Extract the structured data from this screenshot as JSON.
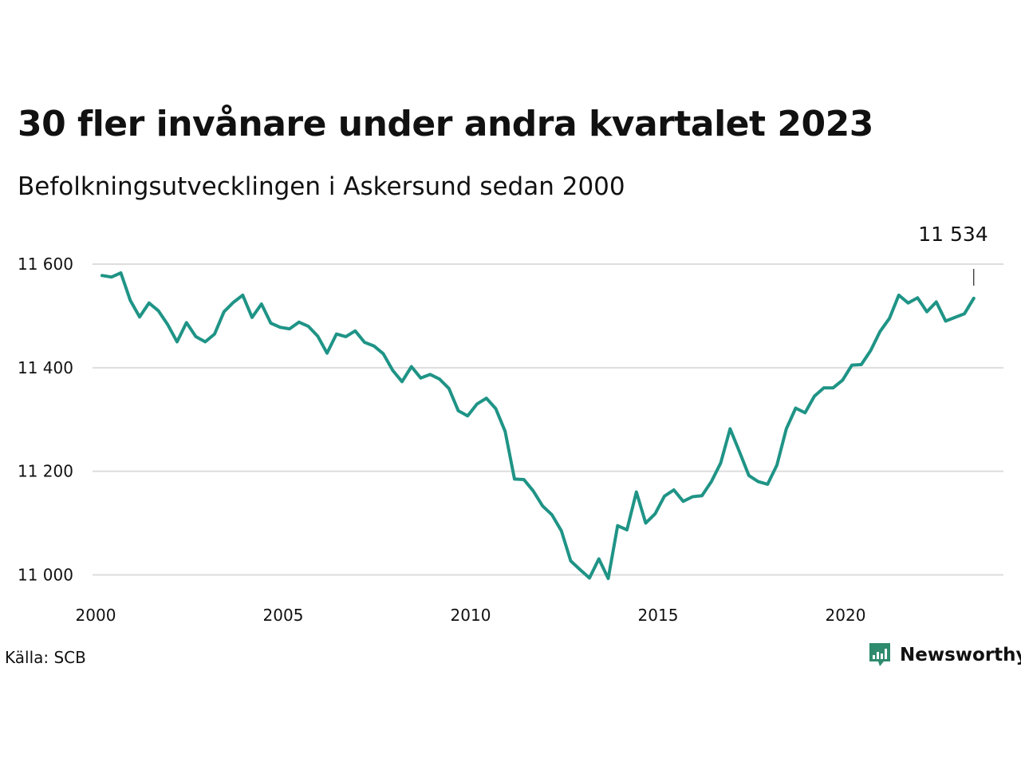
{
  "colors": {
    "line": "#1f9486",
    "grid": "#dddddd",
    "text": "#111111",
    "brand": "#2e8b6e"
  },
  "header": {
    "title": "30 fler invånare under andra kvartalet 2023",
    "subtitle": "Befolkningsutvecklingen i Askersund sedan 2000"
  },
  "footer": {
    "source": "Källa: SCB",
    "brand": "Newsworthy",
    "brand_icon": "newsworthy-logo-icon"
  },
  "chart_data": {
    "type": "line",
    "title": "30 fler invånare under andra kvartalet 2023",
    "subtitle": "Befolkningsutvecklingen i Askersund sedan 2000",
    "xlabel": "",
    "ylabel": "",
    "xlim": [
      2000,
      2024.3
    ],
    "ylim": [
      10990,
      11620
    ],
    "xticks": [
      2000,
      2005,
      2010,
      2015,
      2020
    ],
    "xtick_labels": [
      "2000",
      "2005",
      "2010",
      "2015",
      "2020"
    ],
    "yticks": [
      11000,
      11200,
      11400,
      11600
    ],
    "ytick_labels": [
      "11 000",
      "11 200",
      "11 400",
      "11 600"
    ],
    "grid": true,
    "legend": "none",
    "end_label": "11 534",
    "series": [
      {
        "values": [
          [
            2000.0,
            11578
          ],
          [
            2000.25,
            11575
          ],
          [
            2000.5,
            11583
          ],
          [
            2000.75,
            11530
          ],
          [
            2001.0,
            11498
          ],
          [
            2001.25,
            11525
          ],
          [
            2001.5,
            11510
          ],
          [
            2001.75,
            11483
          ],
          [
            2002.0,
            11450
          ],
          [
            2002.25,
            11487
          ],
          [
            2002.5,
            11460
          ],
          [
            2002.75,
            11450
          ],
          [
            2003.0,
            11465
          ],
          [
            2003.25,
            11508
          ],
          [
            2003.5,
            11526
          ],
          [
            2003.75,
            11540
          ],
          [
            2004.0,
            11497
          ],
          [
            2004.25,
            11523
          ],
          [
            2004.5,
            11486
          ],
          [
            2004.75,
            11478
          ],
          [
            2005.0,
            11475
          ],
          [
            2005.25,
            11488
          ],
          [
            2005.5,
            11480
          ],
          [
            2005.75,
            11461
          ],
          [
            2006.0,
            11428
          ],
          [
            2006.25,
            11465
          ],
          [
            2006.5,
            11460
          ],
          [
            2006.75,
            11471
          ],
          [
            2007.0,
            11449
          ],
          [
            2007.25,
            11442
          ],
          [
            2007.5,
            11427
          ],
          [
            2007.75,
            11395
          ],
          [
            2008.0,
            11373
          ],
          [
            2008.25,
            11402
          ],
          [
            2008.5,
            11380
          ],
          [
            2008.75,
            11387
          ],
          [
            2009.0,
            11378
          ],
          [
            2009.25,
            11360
          ],
          [
            2009.5,
            11317
          ],
          [
            2009.75,
            11307
          ],
          [
            2010.0,
            11330
          ],
          [
            2010.25,
            11341
          ],
          [
            2010.5,
            11321
          ],
          [
            2010.75,
            11277
          ],
          [
            2011.0,
            11185
          ],
          [
            2011.25,
            11184
          ],
          [
            2011.5,
            11162
          ],
          [
            2011.75,
            11133
          ],
          [
            2012.0,
            11116
          ],
          [
            2012.25,
            11085
          ],
          [
            2012.5,
            11027
          ],
          [
            2012.75,
            11010
          ],
          [
            2013.0,
            10994
          ],
          [
            2013.25,
            11031
          ],
          [
            2013.5,
            10993
          ],
          [
            2013.75,
            11095
          ],
          [
            2014.0,
            11087
          ],
          [
            2014.25,
            11160
          ],
          [
            2014.5,
            11100
          ],
          [
            2014.75,
            11118
          ],
          [
            2015.0,
            11152
          ],
          [
            2015.25,
            11164
          ],
          [
            2015.5,
            11142
          ],
          [
            2015.75,
            11151
          ],
          [
            2016.0,
            11153
          ],
          [
            2016.25,
            11180
          ],
          [
            2016.5,
            11216
          ],
          [
            2016.75,
            11282
          ],
          [
            2017.0,
            11238
          ],
          [
            2017.25,
            11192
          ],
          [
            2017.5,
            11180
          ],
          [
            2017.75,
            11175
          ],
          [
            2018.0,
            11212
          ],
          [
            2018.25,
            11282
          ],
          [
            2018.5,
            11322
          ],
          [
            2018.75,
            11313
          ],
          [
            2019.0,
            11345
          ],
          [
            2019.25,
            11361
          ],
          [
            2019.5,
            11361
          ],
          [
            2019.75,
            11376
          ],
          [
            2020.0,
            11405
          ],
          [
            2020.25,
            11406
          ],
          [
            2020.5,
            11433
          ],
          [
            2020.75,
            11470
          ],
          [
            2021.0,
            11495
          ],
          [
            2021.25,
            11540
          ],
          [
            2021.5,
            11525
          ],
          [
            2021.75,
            11535
          ],
          [
            2022.0,
            11508
          ],
          [
            2022.25,
            11527
          ],
          [
            2022.5,
            11490
          ],
          [
            2022.75,
            11497
          ],
          [
            2023.0,
            11504
          ],
          [
            2023.25,
            11534
          ]
        ]
      }
    ]
  }
}
